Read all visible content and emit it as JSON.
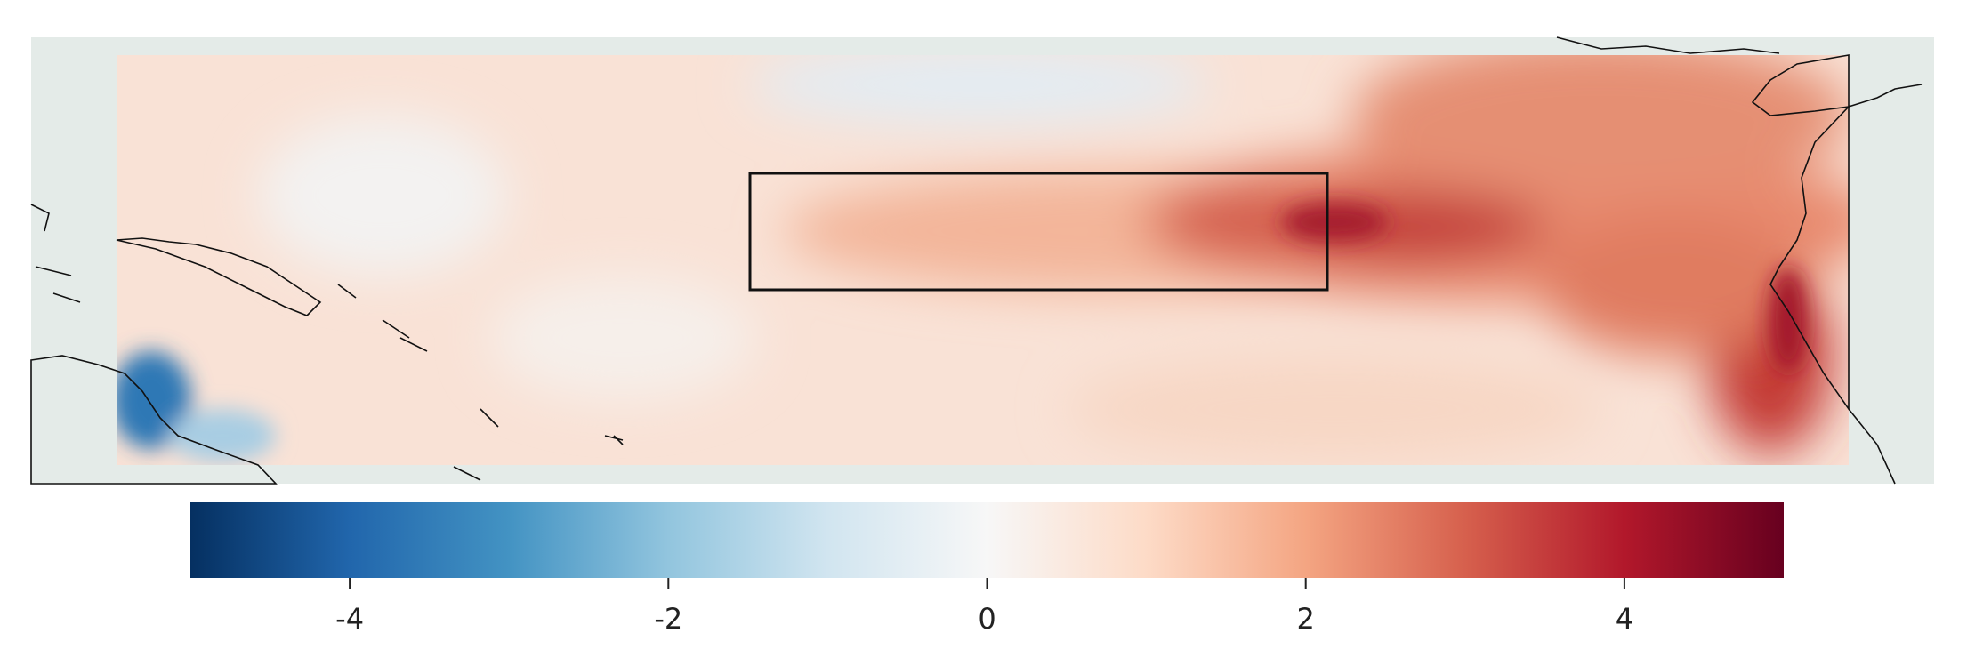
{
  "colorbar": {
    "range": [
      -5,
      5
    ],
    "ticks": [
      -4,
      -2,
      0,
      2,
      4
    ]
  }
}
